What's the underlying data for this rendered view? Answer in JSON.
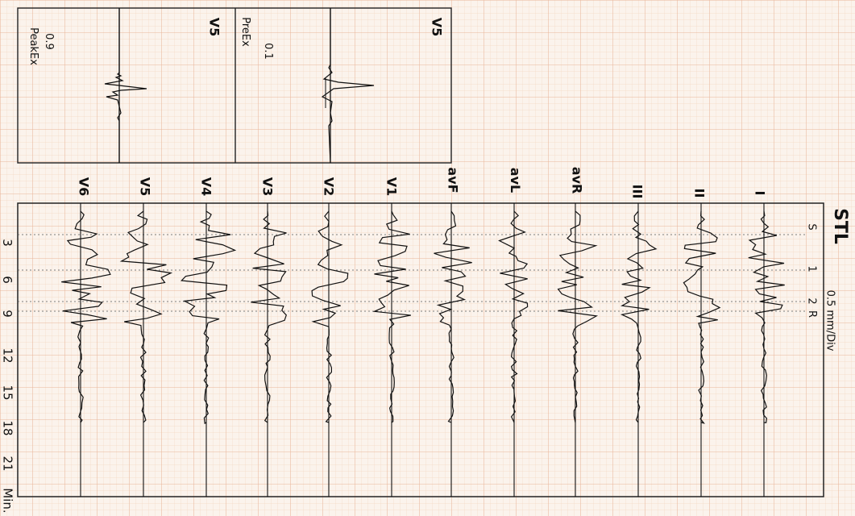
{
  "title": "STL",
  "scale_label": "0.5 mm/Div",
  "markers": [
    "S",
    "1",
    "2",
    "R"
  ],
  "leads": [
    "I",
    "II",
    "III",
    "avR",
    "avL",
    "avF",
    "V1",
    "V2",
    "V3",
    "V4",
    "V5",
    "V6"
  ],
  "time_ticks": [
    "3",
    "6",
    "9",
    "12",
    "15",
    "18",
    "21",
    "Min."
  ],
  "insets": [
    {
      "lead": "V5",
      "value": "0.1",
      "label": "PreEx"
    },
    {
      "lead": "V5",
      "value": "0.9",
      "label": "PeakEx"
    }
  ],
  "colors": {
    "paper": "#fbf3ec",
    "grid_minor": "#f3d9c4",
    "grid_major": "#e9b79a",
    "trace": "#111111"
  }
}
